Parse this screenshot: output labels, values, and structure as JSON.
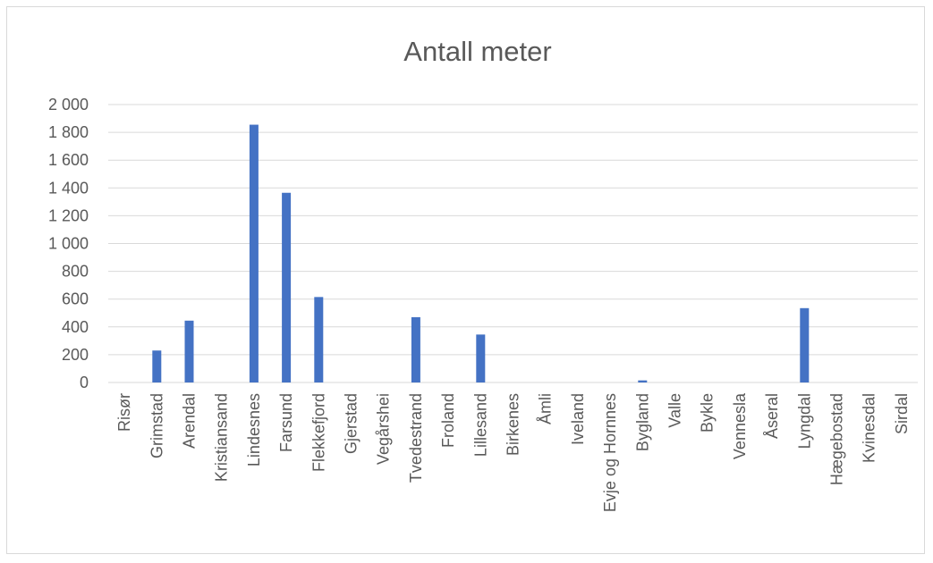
{
  "chart_data": {
    "type": "bar",
    "title": "Antall meter",
    "xlabel": "",
    "ylabel": "",
    "ylim": [
      0,
      2000
    ],
    "yticks": [
      0,
      200,
      400,
      600,
      800,
      1000,
      1200,
      1400,
      1600,
      1800,
      2000
    ],
    "ytick_labels": [
      "0",
      "200",
      "400",
      "600",
      "800",
      "1 000",
      "1 200",
      "1 400",
      "1 600",
      "1 800",
      "2 000"
    ],
    "grid": true,
    "legend": "none",
    "categories": [
      "Risør",
      "Grimstad",
      "Arendal",
      "Kristiansand",
      "Lindesnes",
      "Farsund",
      "Flekkefjord",
      "Gjerstad",
      "Vegårshei",
      "Tvedestrand",
      "Froland",
      "Lillesand",
      "Birkenes",
      "Åmli",
      "Iveland",
      "Evje og Hornnes",
      "Bygland",
      "Valle",
      "Bykle",
      "Vennesla",
      "Åseral",
      "Lyngdal",
      "Hægebostad",
      "Kvinesdal",
      "Sirdal"
    ],
    "values": [
      0,
      230,
      445,
      0,
      1855,
      1365,
      615,
      0,
      0,
      470,
      0,
      345,
      0,
      0,
      0,
      0,
      15,
      0,
      0,
      0,
      0,
      535,
      0,
      0,
      0
    ]
  },
  "colors": {
    "bar": "#4472c4",
    "grid": "#d9d9d9",
    "text": "#595959",
    "border": "#d9d9d9"
  }
}
